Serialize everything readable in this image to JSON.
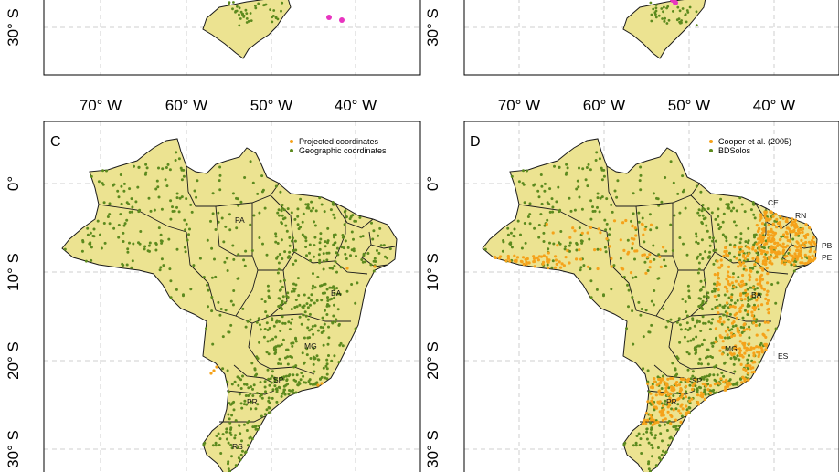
{
  "figure": {
    "x_ticks": [
      "70° W",
      "60° W",
      "50° W",
      "40° W"
    ],
    "y_ticks_top": [
      "30° S"
    ],
    "y_ticks_bottom": [
      "0°",
      "10° S",
      "20° S",
      "30° S"
    ]
  },
  "panels": {
    "C": {
      "letter": "C",
      "legend": [
        {
          "label": "Projected coordinates",
          "color": "#f5a21a"
        },
        {
          "label": "Geographic coordinates",
          "color": "#5c8a1e"
        }
      ],
      "state_labels": [
        "PA",
        "BA",
        "MG",
        "SP",
        "PR",
        "RS"
      ]
    },
    "D": {
      "letter": "D",
      "legend": [
        {
          "label": "Cooper et al. (2005)",
          "color": "#f5a21a"
        },
        {
          "label": "BDSolos",
          "color": "#5c8a1e"
        }
      ],
      "state_labels": [
        "CE",
        "RN",
        "PB",
        "PE",
        "BA",
        "MG",
        "ES",
        "SP",
        "PR"
      ]
    }
  },
  "colors": {
    "land": "#ece391",
    "green_points": "#5c8a1e",
    "orange_points": "#f5a21a",
    "magenta_points": "#e834c0"
  }
}
